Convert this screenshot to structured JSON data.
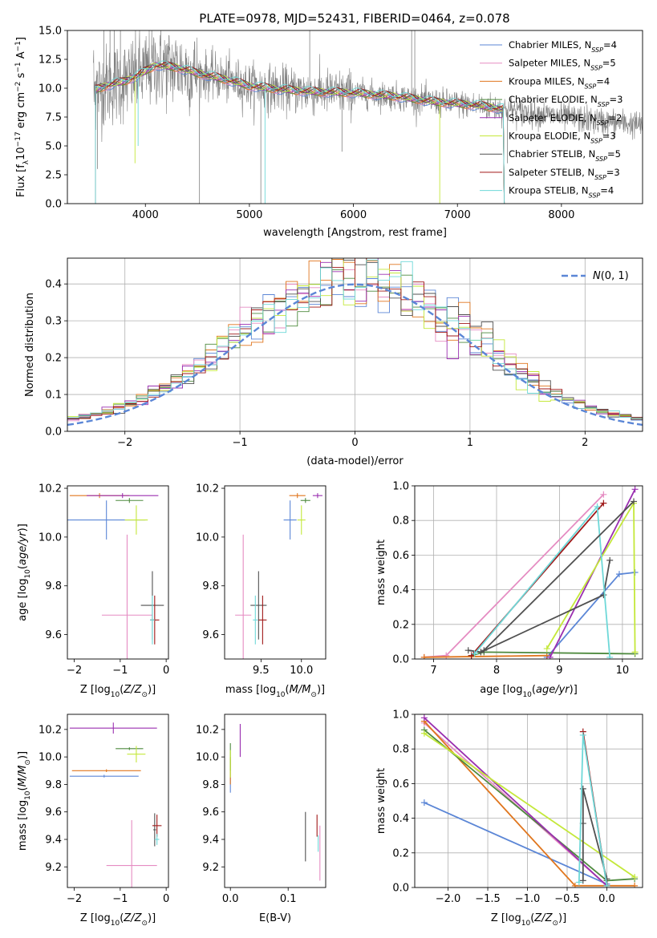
{
  "title": "PLATE=0978, MJD=52431, FIBERID=0464, z=0.078",
  "colors": {
    "chabrier_miles": "#5b86d6",
    "salpeter_miles": "#e58cc2",
    "kroupa_miles": "#e0761e",
    "chabrier_elodie": "#4e8a3e",
    "salpeter_elodie": "#9a2fb0",
    "kroupa_elodie": "#c4e83a",
    "chabrier_stelib": "#505050",
    "salpeter_stelib": "#a01818",
    "kroupa_stelib": "#6ed8d8",
    "data": "#808080",
    "gaussian": "#5b86d6"
  },
  "legend": [
    {
      "key": "chabrier_miles",
      "name": "Chabrier MILES, N",
      "sub": "SSP",
      "n": "=4"
    },
    {
      "key": "salpeter_miles",
      "name": "Salpeter MILES, N",
      "sub": "SSP",
      "n": "=5"
    },
    {
      "key": "kroupa_miles",
      "name": "Kroupa MILES, N",
      "sub": "SSP",
      "n": "=4"
    },
    {
      "key": "chabrier_elodie",
      "name": "Chabrier ELODIE, N",
      "sub": "SSP",
      "n": "=3"
    },
    {
      "key": "salpeter_elodie",
      "name": "Salpeter ELODIE, N",
      "sub": "SSP",
      "n": "=2"
    },
    {
      "key": "kroupa_elodie",
      "name": "Kroupa ELODIE, N",
      "sub": "SSP",
      "n": "=3"
    },
    {
      "key": "chabrier_stelib",
      "name": "Chabrier STELIB, N",
      "sub": "SSP",
      "n": "=5"
    },
    {
      "key": "salpeter_stelib",
      "name": "Salpeter STELIB, N",
      "sub": "SSP",
      "n": "=3"
    },
    {
      "key": "kroupa_stelib",
      "name": "Kroupa STELIB, N",
      "sub": "SSP",
      "n": "=4"
    }
  ],
  "chart_data": [
    {
      "id": "spectrum",
      "type": "line",
      "title": "PLATE=0978, MJD=52431, FIBERID=0464, z=0.078",
      "xlabel": "wavelength [Angstrom, rest frame]",
      "ylabel": "Flux [f_λ 10^-17 erg cm^-2 s^-1 A^-1]",
      "xlim": [
        3250,
        8780
      ],
      "ylim": [
        0,
        15
      ],
      "xticks": [
        4000,
        5000,
        6000,
        7000,
        8000
      ],
      "yticks": [
        0.0,
        2.5,
        5.0,
        7.5,
        10.0,
        12.5,
        15.0
      ],
      "continuum": {
        "x": [
          3500,
          3650,
          3800,
          3950,
          4100,
          4300,
          4500,
          4800,
          5000,
          5300,
          5600,
          6000,
          6400,
          6800,
          7200,
          7600,
          8000,
          8400,
          8780
        ],
        "y": [
          9.8,
          10.3,
          10.6,
          11.2,
          12.0,
          11.8,
          11.3,
          10.7,
          10.2,
          9.9,
          9.7,
          9.6,
          9.3,
          8.8,
          8.5,
          8.0,
          7.5,
          7.1,
          6.8
        ]
      },
      "grid": false,
      "legend_position": "top-right"
    },
    {
      "id": "residuals",
      "type": "line",
      "xlabel": "(data-model)/error",
      "ylabel": "Normed distribution",
      "xlim": [
        -2.5,
        2.5
      ],
      "ylim": [
        0.0,
        0.47
      ],
      "xticks": [
        -2,
        -1,
        0,
        1,
        2
      ],
      "yticks": [
        0.0,
        0.1,
        0.2,
        0.3,
        0.4
      ],
      "gaussian": {
        "name": "N(0,1)",
        "mean": 0,
        "sigma": 1
      },
      "histogram": {
        "bin_width": 0.1,
        "series": 9
      },
      "grid": true,
      "legend_position": "top-right"
    },
    {
      "id": "age_vs_Z",
      "type": "scatter",
      "xlabel": "Z [log10(Z/Z⊙)]",
      "ylabel": "age [log10(age/yr)]",
      "xlim": [
        -2.15,
        0.05
      ],
      "ylim": [
        9.5,
        10.21
      ],
      "xticks": [
        -2,
        -1,
        0
      ],
      "yticks": [
        9.6,
        9.8,
        10.0,
        10.2
      ],
      "points": [
        {
          "s": "chabrier_miles",
          "x": -1.3,
          "y": 10.07,
          "xerr": 0.85,
          "yerr": 0.08
        },
        {
          "s": "salpeter_miles",
          "x": -0.85,
          "y": 9.68,
          "xerr": 0.55,
          "yerr": 0.33
        },
        {
          "s": "kroupa_miles",
          "x": -1.45,
          "y": 10.17,
          "xerr": 0.65,
          "yerr": 0.01
        },
        {
          "s": "chabrier_elodie",
          "x": -0.8,
          "y": 10.15,
          "xerr": 0.3,
          "yerr": 0.01
        },
        {
          "s": "salpeter_elodie",
          "x": -0.95,
          "y": 10.17,
          "xerr": 0.78,
          "yerr": 0.01
        },
        {
          "s": "kroupa_elodie",
          "x": -0.65,
          "y": 10.07,
          "xerr": 0.25,
          "yerr": 0.06
        },
        {
          "s": "chabrier_stelib",
          "x": -0.3,
          "y": 9.72,
          "xerr": 0.25,
          "yerr": 0.14
        },
        {
          "s": "salpeter_stelib",
          "x": -0.25,
          "y": 9.66,
          "xerr": 0.1,
          "yerr": 0.1
        },
        {
          "s": "kroupa_stelib",
          "x": -0.3,
          "y": 9.66,
          "xerr": 0.05,
          "yerr": 0.1
        }
      ]
    },
    {
      "id": "age_vs_mass",
      "type": "scatter",
      "xlabel": "mass [log10(M/M⊙)]",
      "ylabel": "",
      "xlim": [
        9.05,
        10.3
      ],
      "ylim": [
        9.5,
        10.21
      ],
      "xticks": [
        9.5,
        10.0
      ],
      "yticks": [
        9.6,
        9.8,
        10.0,
        10.2
      ],
      "points": [
        {
          "s": "chabrier_miles",
          "x": 9.86,
          "y": 10.07,
          "xerr": 0.08,
          "yerr": 0.08
        },
        {
          "s": "salpeter_miles",
          "x": 9.28,
          "y": 9.68,
          "xerr": 0.1,
          "yerr": 0.33
        },
        {
          "s": "kroupa_miles",
          "x": 9.95,
          "y": 10.17,
          "xerr": 0.1,
          "yerr": 0.01
        },
        {
          "s": "chabrier_elodie",
          "x": 10.05,
          "y": 10.15,
          "xerr": 0.06,
          "yerr": 0.01
        },
        {
          "s": "salpeter_elodie",
          "x": 10.2,
          "y": 10.17,
          "xerr": 0.06,
          "yerr": 0.01
        },
        {
          "s": "kroupa_elodie",
          "x": 10.0,
          "y": 10.07,
          "xerr": 0.05,
          "yerr": 0.06
        },
        {
          "s": "chabrier_stelib",
          "x": 9.47,
          "y": 9.72,
          "xerr": 0.1,
          "yerr": 0.14
        },
        {
          "s": "salpeter_stelib",
          "x": 9.52,
          "y": 9.66,
          "xerr": 0.05,
          "yerr": 0.1
        },
        {
          "s": "kroupa_stelib",
          "x": 9.43,
          "y": 9.66,
          "xerr": 0.03,
          "yerr": 0.1
        }
      ]
    },
    {
      "id": "massweight_vs_age",
      "type": "line",
      "xlabel": "age [log10(age/yr)]",
      "ylabel": "mass weight",
      "xlim": [
        6.7,
        10.32
      ],
      "ylim": [
        0.0,
        1.0
      ],
      "xticks": [
        7,
        8,
        9,
        10
      ],
      "yticks": [
        0.0,
        0.2,
        0.4,
        0.6,
        0.8,
        1.0
      ],
      "grid": true,
      "series": [
        {
          "s": "chabrier_miles",
          "x": [
            8.8,
            9.95,
            10.2
          ],
          "y": [
            0.01,
            0.49,
            0.5
          ]
        },
        {
          "s": "salpeter_miles",
          "x": [
            6.85,
            7.2,
            9.7
          ],
          "y": [
            0.01,
            0.02,
            0.95
          ]
        },
        {
          "s": "kroupa_miles",
          "x": [
            6.85,
            8.8
          ],
          "y": [
            0.01,
            0.02
          ]
        },
        {
          "s": "chabrier_elodie",
          "x": [
            7.6,
            7.8,
            10.2
          ],
          "y": [
            0.02,
            0.04,
            0.03
          ]
        },
        {
          "s": "salpeter_elodie",
          "x": [
            8.85,
            10.2
          ],
          "y": [
            0.01,
            0.98
          ]
        },
        {
          "s": "kroupa_elodie",
          "x": [
            8.8,
            10.18,
            10.2
          ],
          "y": [
            0.06,
            0.9,
            0.04
          ]
        },
        {
          "s": "chabrier_stelib",
          "x": [
            7.55,
            7.75,
            9.7,
            9.8
          ],
          "y": [
            0.05,
            0.04,
            0.37,
            0.57
          ]
        },
        {
          "s": "salpeter_stelib",
          "x": [
            7.6,
            9.7
          ],
          "y": [
            0.02,
            0.9
          ]
        },
        {
          "s": "kroupa_stelib",
          "x": [
            7.65,
            9.6,
            9.8
          ],
          "y": [
            0.03,
            0.88,
            0.01
          ]
        },
        {
          "s": "chabrier_stelib",
          "x": [
            7.8,
            10.18
          ],
          "y": [
            0.05,
            0.91
          ]
        }
      ]
    },
    {
      "id": "mass_vs_Z",
      "type": "scatter",
      "xlabel": "Z [log10(Z/Z⊙)]",
      "ylabel": "mass [log10(M/M⊙)]",
      "xlim": [
        -2.15,
        0.05
      ],
      "ylim": [
        9.05,
        10.31
      ],
      "xticks": [
        -2,
        -1,
        0
      ],
      "yticks": [
        9.2,
        9.4,
        9.6,
        9.8,
        10.0,
        10.2
      ],
      "points": [
        {
          "s": "chabrier_miles",
          "x": -1.35,
          "y": 9.86,
          "xerr": 0.75,
          "yerr": 0.01
        },
        {
          "s": "salpeter_miles",
          "x": -0.75,
          "y": 9.21,
          "xerr": 0.55,
          "yerr": 0.33
        },
        {
          "s": "kroupa_miles",
          "x": -1.3,
          "y": 9.9,
          "xerr": 0.75,
          "yerr": 0.01
        },
        {
          "s": "chabrier_elodie",
          "x": -0.8,
          "y": 10.06,
          "xerr": 0.3,
          "yerr": 0.01
        },
        {
          "s": "salpeter_elodie",
          "x": -1.15,
          "y": 10.21,
          "xerr": 0.95,
          "yerr": 0.04
        },
        {
          "s": "kroupa_elodie",
          "x": -0.65,
          "y": 10.02,
          "xerr": 0.2,
          "yerr": 0.06
        },
        {
          "s": "chabrier_stelib",
          "x": -0.25,
          "y": 9.47,
          "xerr": 0.03,
          "yerr": 0.12
        },
        {
          "s": "salpeter_stelib",
          "x": -0.2,
          "y": 9.5,
          "xerr": 0.1,
          "yerr": 0.08
        },
        {
          "s": "kroupa_stelib",
          "x": -0.2,
          "y": 9.4,
          "xerr": 0.05,
          "yerr": 0.04
        }
      ]
    },
    {
      "id": "mass_vs_ebv",
      "type": "scatter",
      "xlabel": "E(B-V)",
      "ylabel": "",
      "xlim": [
        -0.01,
        0.165
      ],
      "ylim": [
        9.05,
        10.31
      ],
      "xticks": [
        0.0,
        0.1
      ],
      "yticks": [
        9.2,
        9.4,
        9.6,
        9.8,
        10.0,
        10.2
      ],
      "points": [
        {
          "s": "chabrier_miles",
          "x": 0.0,
          "y": 9.86,
          "xerr": 0,
          "yerr": 0.12
        },
        {
          "s": "salpeter_miles",
          "x": 0.155,
          "y": 9.3,
          "xerr": 0,
          "yerr": 0.2
        },
        {
          "s": "kroupa_miles",
          "x": 0.0,
          "y": 9.9,
          "xerr": 0,
          "yerr": 0.1
        },
        {
          "s": "chabrier_elodie",
          "x": 0.0,
          "y": 10.0,
          "xerr": 0,
          "yerr": 0.1
        },
        {
          "s": "salpeter_elodie",
          "x": 0.017,
          "y": 10.12,
          "xerr": 0,
          "yerr": 0.12
        },
        {
          "s": "kroupa_elodie",
          "x": 0.0,
          "y": 9.95,
          "xerr": 0,
          "yerr": 0.1
        },
        {
          "s": "chabrier_stelib",
          "x": 0.13,
          "y": 9.42,
          "xerr": 0,
          "yerr": 0.18
        },
        {
          "s": "salpeter_stelib",
          "x": 0.15,
          "y": 9.5,
          "xerr": 0,
          "yerr": 0.08
        },
        {
          "s": "kroupa_stelib",
          "x": 0.152,
          "y": 9.37,
          "xerr": 0,
          "yerr": 0.06
        }
      ]
    },
    {
      "id": "massweight_vs_Z",
      "type": "line",
      "xlabel": "Z [log10(Z/Z⊙)]",
      "ylabel": "mass weight",
      "xlim": [
        -2.42,
        0.45
      ],
      "ylim": [
        0.0,
        1.0
      ],
      "xticks": [
        -2.0,
        -1.5,
        -1.0,
        -0.5,
        0.0
      ],
      "yticks": [
        0.0,
        0.2,
        0.4,
        0.6,
        0.8,
        1.0
      ],
      "grid": true,
      "series": [
        {
          "s": "chabrier_miles",
          "x": [
            -2.3,
            0.0
          ],
          "y": [
            0.49,
            0.02
          ]
        },
        {
          "s": "salpeter_miles",
          "x": [
            -2.3,
            0.0
          ],
          "y": [
            0.95,
            0.01
          ]
        },
        {
          "s": "kroupa_miles",
          "x": [
            -2.3,
            -0.4,
            0.35
          ],
          "y": [
            0.96,
            0.01,
            0.01
          ]
        },
        {
          "s": "chabrier_elodie",
          "x": [
            -2.3,
            0.0,
            0.35
          ],
          "y": [
            0.91,
            0.04,
            0.05
          ]
        },
        {
          "s": "salpeter_elodie",
          "x": [
            -2.3,
            0.0
          ],
          "y": [
            0.98,
            0.01
          ]
        },
        {
          "s": "kroupa_elodie",
          "x": [
            -2.3,
            0.35
          ],
          "y": [
            0.89,
            0.06
          ]
        },
        {
          "s": "chabrier_stelib",
          "x": [
            -0.3,
            -0.3,
            -0.3,
            0.0,
            0.0
          ],
          "y": [
            0.04,
            0.37,
            0.57,
            0.05,
            0.01
          ]
        },
        {
          "s": "salpeter_stelib",
          "x": [
            -0.3,
            0.0
          ],
          "y": [
            0.9,
            0.01
          ]
        },
        {
          "s": "kroupa_stelib",
          "x": [
            -0.35,
            -0.3,
            0.0
          ],
          "y": [
            0.03,
            0.88,
            0.01
          ]
        }
      ]
    }
  ]
}
